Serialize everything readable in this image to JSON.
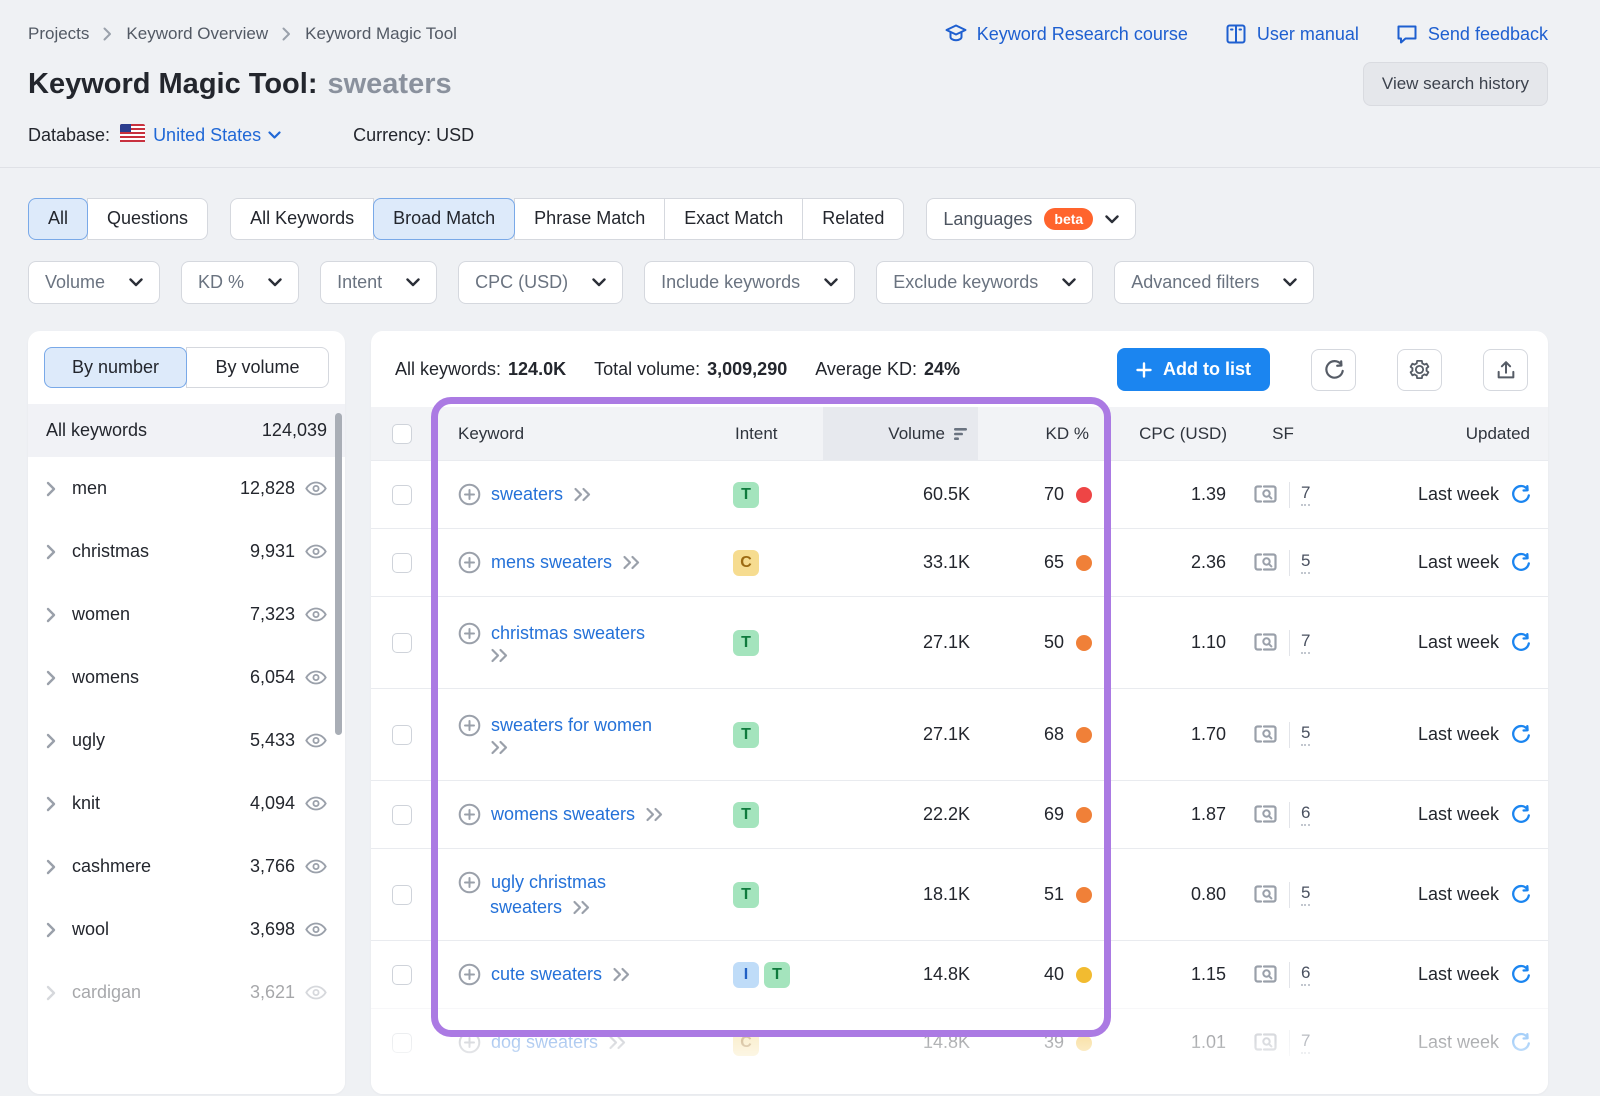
{
  "breadcrumb": {
    "items": [
      "Projects",
      "Keyword Overview",
      "Keyword Magic Tool"
    ]
  },
  "header_links": [
    {
      "label": "Keyword Research course",
      "icon": "graduation-cap-icon"
    },
    {
      "label": "User manual",
      "icon": "book-icon"
    },
    {
      "label": "Send feedback",
      "icon": "feedback-bubble-icon"
    }
  ],
  "page": {
    "title": "Keyword Magic Tool:",
    "query": "sweaters"
  },
  "view_history_label": "View search history",
  "database": {
    "label": "Database:",
    "value": "United States",
    "currency": "Currency: USD"
  },
  "tabs": {
    "group1": [
      {
        "label": "All",
        "active": true
      },
      {
        "label": "Questions",
        "active": false
      }
    ],
    "group2": [
      {
        "label": "All Keywords",
        "active": false
      },
      {
        "label": "Broad Match",
        "active": true
      },
      {
        "label": "Phrase Match",
        "active": false
      },
      {
        "label": "Exact Match",
        "active": false
      },
      {
        "label": "Related",
        "active": false
      }
    ],
    "languages": {
      "label": "Languages",
      "badge": "beta"
    }
  },
  "filters": [
    "Volume",
    "KD %",
    "Intent",
    "CPC (USD)",
    "Include keywords",
    "Exclude keywords",
    "Advanced filters"
  ],
  "sidebar": {
    "toggle": [
      {
        "label": "By number",
        "active": true
      },
      {
        "label": "By volume",
        "active": false
      }
    ],
    "all_row": {
      "label": "All keywords",
      "count": "124,039"
    },
    "groups": [
      {
        "label": "men",
        "count": "12,828",
        "faded": false
      },
      {
        "label": "christmas",
        "count": "9,931",
        "faded": false
      },
      {
        "label": "women",
        "count": "7,323",
        "faded": false
      },
      {
        "label": "womens",
        "count": "6,054",
        "faded": false
      },
      {
        "label": "ugly",
        "count": "5,433",
        "faded": false
      },
      {
        "label": "knit",
        "count": "4,094",
        "faded": false
      },
      {
        "label": "cashmere",
        "count": "3,766",
        "faded": false
      },
      {
        "label": "wool",
        "count": "3,698",
        "faded": false
      },
      {
        "label": "cardigan",
        "count": "3,621",
        "faded": true
      }
    ]
  },
  "stats": {
    "all_keywords_label": "All keywords:",
    "all_keywords": "124.0K",
    "total_volume_label": "Total volume:",
    "total_volume": "3,009,290",
    "avg_kd_label": "Average KD:",
    "avg_kd": "24%"
  },
  "toolbar": {
    "add_to_list": "Add to list"
  },
  "table": {
    "columns": [
      "Keyword",
      "Intent",
      "Volume",
      "KD %",
      "CPC (USD)",
      "SF",
      "Updated"
    ],
    "rows": [
      {
        "keyword": "sweaters",
        "line1": "sweaters",
        "line2": null,
        "intents": [
          "T"
        ],
        "volume": "60.5K",
        "kd": "70",
        "kd_level": "red",
        "cpc": "1.39",
        "sf": "7",
        "updated": "Last week",
        "faded": false
      },
      {
        "keyword": "mens sweaters",
        "line1": "mens sweaters",
        "line2": null,
        "intents": [
          "C"
        ],
        "volume": "33.1K",
        "kd": "65",
        "kd_level": "orange",
        "cpc": "2.36",
        "sf": "5",
        "updated": "Last week",
        "faded": false
      },
      {
        "keyword": "christmas sweaters",
        "line1": "christmas sweaters",
        "line2": "",
        "intents": [
          "T"
        ],
        "volume": "27.1K",
        "kd": "50",
        "kd_level": "orange",
        "cpc": "1.10",
        "sf": "7",
        "updated": "Last week",
        "faded": false
      },
      {
        "keyword": "sweaters for women",
        "line1": "sweaters for women",
        "line2": "",
        "intents": [
          "T"
        ],
        "volume": "27.1K",
        "kd": "68",
        "kd_level": "orange",
        "cpc": "1.70",
        "sf": "5",
        "updated": "Last week",
        "faded": false
      },
      {
        "keyword": "womens sweaters",
        "line1": "womens sweaters",
        "line2": null,
        "intents": [
          "T"
        ],
        "volume": "22.2K",
        "kd": "69",
        "kd_level": "orange",
        "cpc": "1.87",
        "sf": "6",
        "updated": "Last week",
        "faded": false
      },
      {
        "keyword": "ugly christmas sweaters",
        "line1": "ugly christmas",
        "line2": "sweaters",
        "intents": [
          "T"
        ],
        "volume": "18.1K",
        "kd": "51",
        "kd_level": "orange",
        "cpc": "0.80",
        "sf": "5",
        "updated": "Last week",
        "faded": false
      },
      {
        "keyword": "cute sweaters",
        "line1": "cute sweaters",
        "line2": null,
        "intents": [
          "I",
          "T"
        ],
        "volume": "14.8K",
        "kd": "40",
        "kd_level": "yellow",
        "cpc": "1.15",
        "sf": "6",
        "updated": "Last week",
        "faded": false
      },
      {
        "keyword": "dog sweaters",
        "line1": "dog sweaters",
        "line2": null,
        "intents": [
          "C"
        ],
        "volume": "14.8K",
        "kd": "39",
        "kd_level": "yellow",
        "cpc": "1.01",
        "sf": "7",
        "updated": "Last week",
        "faded": true
      }
    ]
  },
  "colors": {
    "accent_blue": "#1b85f0",
    "link_blue": "#2471d8",
    "purple_highlight": "#ab7ae3",
    "kd": {
      "red": "#ee4545",
      "orange": "#f08038",
      "yellow": "#f2bb30"
    },
    "intent": {
      "T": {
        "bg": "#a4e4bd",
        "fg": "#0f7a3d"
      },
      "C": {
        "bg": "#f6dc90",
        "fg": "#9c6a12"
      },
      "I": {
        "bg": "#bfdcf8",
        "fg": "#2160c4"
      }
    }
  }
}
